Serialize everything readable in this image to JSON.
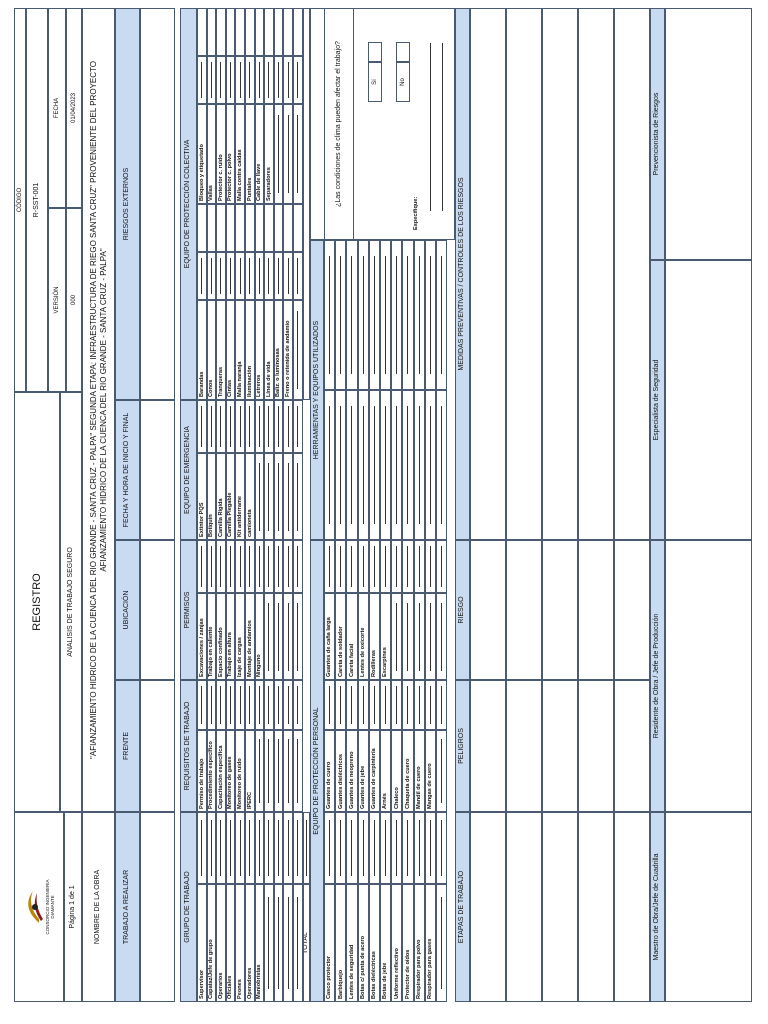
{
  "header": {
    "company": "CONSORCIO INGENIERIA DIAMANTE",
    "page": "Página 1 de 1",
    "title": "REGISTRO",
    "subtitle": "ANALISIS DE TRABAJO SEGURO",
    "code_label": "CÓDIGO",
    "code": "R-SST-001",
    "version_label": "VERSIÓN",
    "version": "000",
    "date_label": "FECHA",
    "date": "01/04/2023"
  },
  "project": {
    "label": "NOMBRE DE LA OBRA",
    "name": "\"AFIANZAMIENTO HIDRICO DE LA CUENCA DEL RIO GRANDE - SANTA CRUZ - PALPA\" SEGUNDA ETAPA: INFRAESTRUCTURA DE RIEGO SANTA CRUZ\" PROVENIENTE DEL PROYECTO AFIANZAMIENTO HIDRICO DE LA CUENCA DEL RIO GRANDE - SANTA CRUZ - PALPA\""
  },
  "work_row": {
    "headers": [
      "TRABAJO A REALIZAR",
      "FRENTE",
      "UBICACIÓN",
      "FECHA Y HORA DE INICIO Y FINAL",
      "RIESGOS EXTERNOS"
    ]
  },
  "checklists": [
    {
      "title": "GRUPO DE TRABAJO",
      "items": [
        "Supervisor",
        "Capataz/Jefe de grupo",
        "Operarios",
        "Oficiales",
        "Peones",
        "Operadores",
        "Maniobristas"
      ]
    },
    {
      "title": "REQUISITOS DE TRABAJO",
      "items": [
        "Permiso de trabajo",
        "Procedimiento específico",
        "Capacitación específica",
        "Monitoreo de gases",
        "Monitoreo de ruido",
        "IPERC"
      ]
    },
    {
      "title": "PERMISOS",
      "items": [
        "Excavaciones / zanjas",
        "Trabajo en caliente",
        "Espacio confinado",
        "Trabajo en altura",
        "Izaje de cargas",
        "Montaje de andamios",
        "Ninguno"
      ]
    },
    {
      "title": "EQUIPO DE EMERGENCIA",
      "items": [
        "Extintor PQS",
        "Botiquín",
        "Camilla Rígida",
        "Camilla Plegable",
        "Kit antiderrame",
        "camioneta"
      ]
    }
  ],
  "collective": {
    "title": "EQUIPO DE PROTECCIÓN COLECTIVA",
    "columns": [
      [
        "Barandas",
        "Conos",
        "Tranqueras",
        "Cintas",
        "Malla naranja",
        "Iluminación",
        "Letreros",
        "Línea de vida",
        "Baliz. o luminosas",
        "Freno o retenida de andamio"
      ],
      [
        "Bloqueo y etiquetado",
        "Vallas",
        "Protector c. ruido",
        "Protector c. polvo",
        "Malla contra caídas",
        "Puntales",
        "Cable de llave",
        "Separadores"
      ]
    ]
  },
  "total_label": "TOTAL",
  "ppe": {
    "title": "EQUIPO DE PROTECCIÓN PERSONAL",
    "columns": [
      [
        "Casco protector",
        "Barbiquejo",
        "Lentes de seguridad",
        "Botas c/ punta de acero",
        "Botas dieléctricas",
        "Botas de jebe",
        "Uniforme reflectivo",
        "Protector de oídos",
        "Respirador para polvo",
        "Respirador para gases"
      ],
      [
        "Guantes de cuero",
        "Guantes dieléctricos",
        "Guantes de neopreno",
        "Guantes de jebe",
        "Guantes de carpintería",
        "Arnés",
        "Chaleco",
        "Chaqueta de cuero",
        "Mandil de cuero",
        "Mangas de cuero"
      ],
      [
        "Guantes de caña larga",
        "Careta de soldador",
        "Careta facial",
        "Lentes de oxicorte",
        "Rodilleras",
        "Escarpines"
      ]
    ]
  },
  "tools": {
    "title": "HERRAMIENTAS Y EQUIPOS UTILIZADOS"
  },
  "climate": {
    "question": "¿Las condiciones de clima pueden afectar el trabajo?",
    "yes": "Sí",
    "no": "No",
    "specify": "Especifique:"
  },
  "risk_table": {
    "headers": [
      "ETAPAS DE TRABAJO",
      "PELIGROS",
      "RIESGO",
      "MEDIDAS PREVENTIVAS / CONTROLES DE LOS RIESGOS"
    ]
  },
  "signatures": [
    "Maestro de Obra/Jefe de Cuadrilla",
    "Residente de Obra / Jefe de Producción",
    "Especialista de Seguridad",
    "Prevencionista de Riesgos"
  ]
}
